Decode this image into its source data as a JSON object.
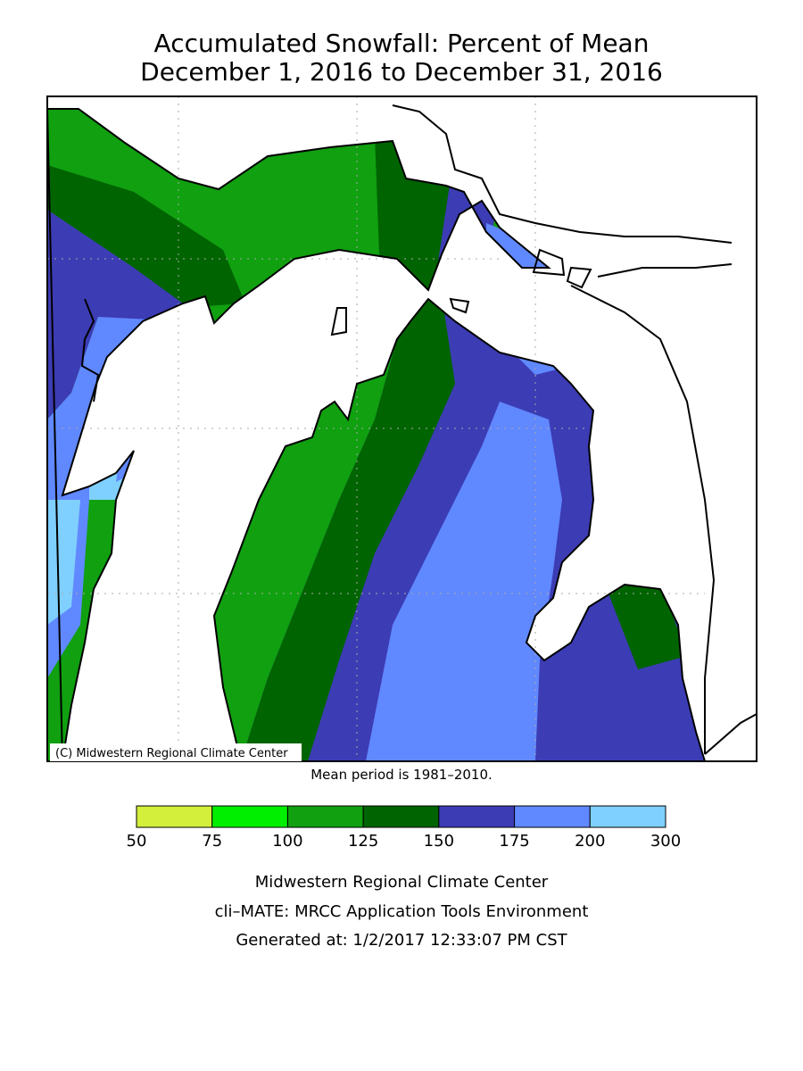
{
  "title": [
    "Accumulated Snowfall: Percent of Mean",
    "December 1, 2016 to December 31, 2016"
  ],
  "map": {
    "credit": "(C) Midwestern Regional Climate Center"
  },
  "note": "Mean period is 1981–2010.",
  "legend": {
    "breaks": [
      50,
      75,
      100,
      125,
      150,
      175,
      200,
      300
    ],
    "colors": [
      "#d4ee3c",
      "#00ee00",
      "#10a010",
      "#006400",
      "#3c3cb4",
      "#6088ff",
      "#7fd0ff"
    ]
  },
  "footer": [
    "Midwestern Regional Climate Center",
    "cli–MATE: MRCC Application Tools Environment",
    "Generated at: 1/2/2017 12:33:07 PM CST"
  ]
}
